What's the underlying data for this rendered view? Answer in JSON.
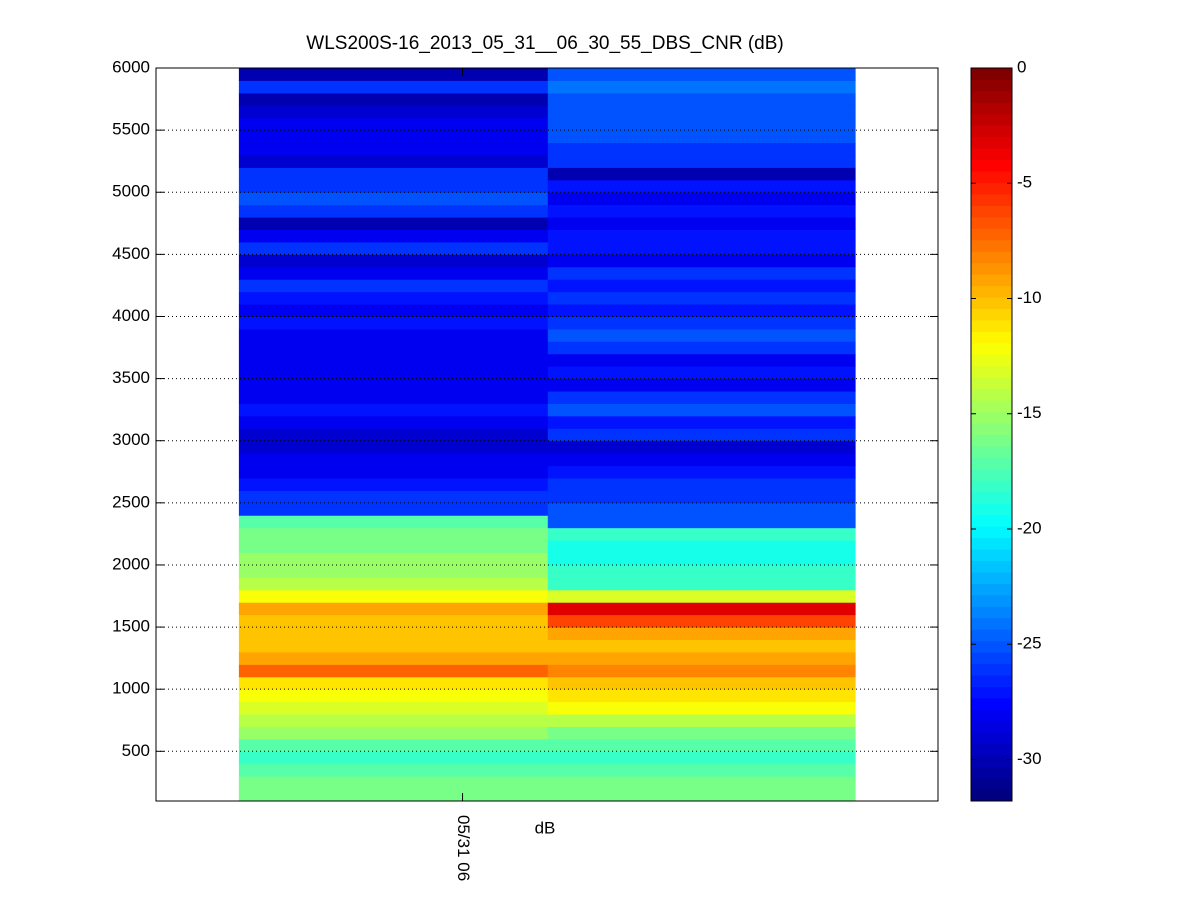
{
  "chart_data": {
    "type": "heatmap",
    "title": "WLS200S-16_2013_05_31__06_30_55_DBS_CNR (dB)",
    "xlabel": "dB",
    "xlim": [
      0,
      1
    ],
    "xticks": [
      {
        "value": 0.392,
        "label": "05/31 06"
      }
    ],
    "x_edges": [
      0.106,
      0.501,
      0.894
    ],
    "ylim": [
      100,
      6000
    ],
    "yticks": [
      500,
      1000,
      1500,
      2000,
      2500,
      3000,
      3500,
      4000,
      4500,
      5000,
      5500,
      6000
    ],
    "y_edges": [
      100,
      200,
      300,
      400,
      500,
      600,
      700,
      800,
      900,
      1000,
      1100,
      1200,
      1300,
      1400,
      1500,
      1600,
      1700,
      1800,
      1900,
      2000,
      2100,
      2200,
      2300,
      2400,
      2500,
      2600,
      2700,
      2800,
      2900,
      3000,
      3100,
      3200,
      3300,
      3400,
      3500,
      3600,
      3700,
      3800,
      3900,
      4000,
      4100,
      4200,
      4300,
      4400,
      4500,
      4600,
      4700,
      4800,
      4900,
      5000,
      5100,
      5200,
      5300,
      5400,
      5500,
      5600,
      5700,
      5800,
      5900,
      6000
    ],
    "z": [
      [
        -16,
        -16,
        -17,
        -18,
        -17,
        -15,
        -14,
        -13,
        -12,
        -11,
        -7,
        -9,
        -10,
        -10,
        -10,
        -9,
        -12,
        -14,
        -15,
        -15,
        -16,
        -16,
        -17,
        -26,
        -26,
        -27,
        -28,
        -28,
        -29,
        -29,
        -28,
        -27,
        -28,
        -28,
        -28,
        -28,
        -28,
        -28,
        -27,
        -28,
        -27,
        -26,
        -28,
        -29,
        -26,
        -28,
        -30,
        -26,
        -25,
        -26,
        -26,
        -29,
        -28,
        -28,
        -28,
        -29,
        -30,
        -26,
        -30
      ],
      [
        -16,
        -16,
        -17,
        -18,
        -17,
        -16,
        -14,
        -12,
        -11,
        -10,
        -8,
        -9,
        -10,
        -9,
        -6,
        -3,
        -13,
        -18,
        -18,
        -19,
        -19,
        -18,
        -25,
        -25,
        -26,
        -26,
        -27,
        -28,
        -29,
        -26,
        -27,
        -25,
        -26,
        -28,
        -27,
        -28,
        -26,
        -25,
        -26,
        -27,
        -26,
        -27,
        -26,
        -28,
        -27,
        -27,
        -28,
        -27,
        -28,
        -27,
        -30,
        -26,
        -26,
        -25,
        -25,
        -25,
        -25,
        -24,
        -25
      ]
    ],
    "clim": [
      -31.8,
      0
    ],
    "cticks": [
      0,
      -5,
      -10,
      -15,
      -20,
      -25,
      -30
    ],
    "colormap": "jet",
    "grid": true
  }
}
